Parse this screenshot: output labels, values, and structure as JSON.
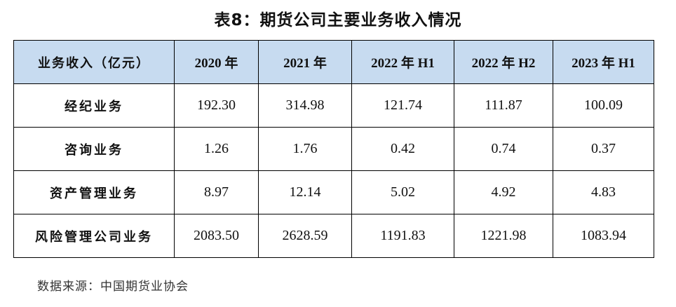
{
  "title": "表8：期货公司主要业务收入情况",
  "table": {
    "headers": [
      "业务收入（亿元）",
      "2020 年",
      "2021 年",
      "2022 年 H1",
      "2022 年 H2",
      "2023 年 H1"
    ],
    "rows": [
      [
        "经纪业务",
        "192.30",
        "314.98",
        "121.74",
        "111.87",
        "100.09"
      ],
      [
        "咨询业务",
        "1.26",
        "1.76",
        "0.42",
        "0.74",
        "0.37"
      ],
      [
        "资产管理业务",
        "8.97",
        "12.14",
        "5.02",
        "4.92",
        "4.83"
      ],
      [
        "风险管理公司业务",
        "2083.50",
        "2628.59",
        "1191.83",
        "1221.98",
        "1083.94"
      ]
    ]
  },
  "source": "数据来源：中国期货业协会",
  "colors": {
    "header_bg": "#c7dbf0",
    "border": "#000000"
  }
}
